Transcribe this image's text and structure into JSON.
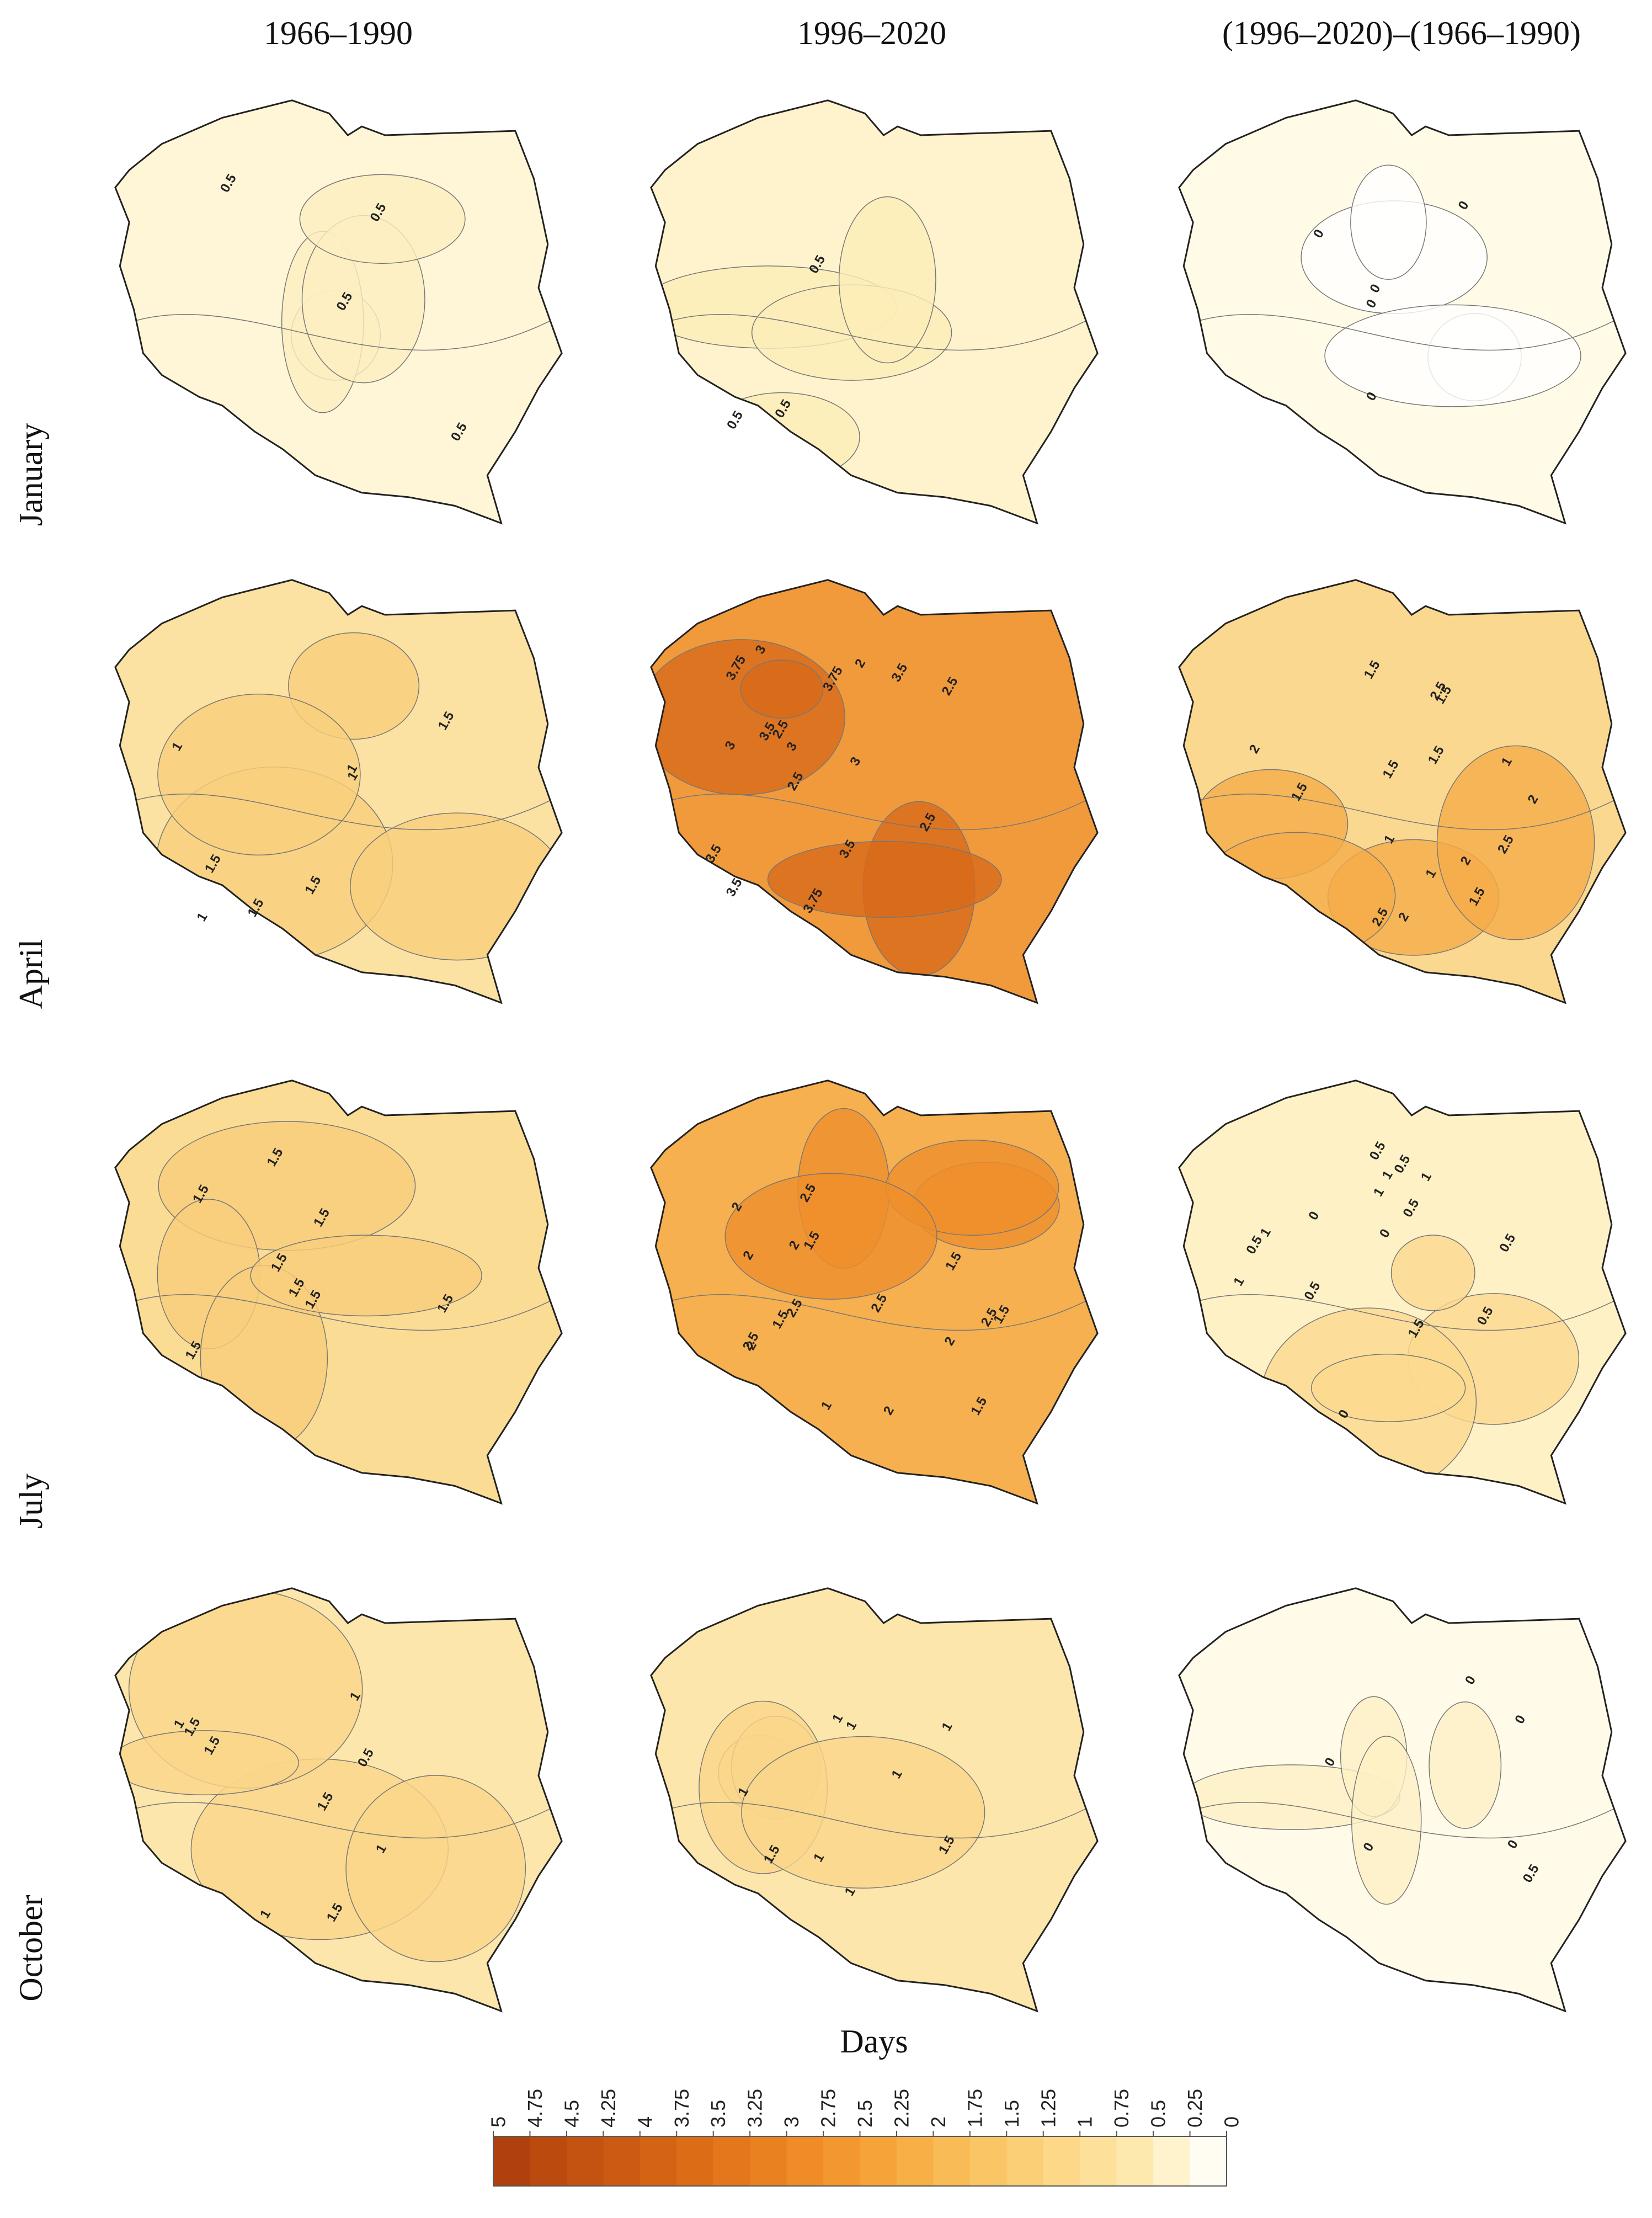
{
  "figure": {
    "columns": [
      "1966–1990",
      "1996–2020",
      "(1996–2020)–(1966–1990)"
    ],
    "rows": [
      "January",
      "April",
      "July",
      "October"
    ],
    "maps": [
      [
        {
          "fill": "#fef6d6",
          "inner_fill": "#fdefc0",
          "contour_labels": [
            0.5,
            0.5,
            0.5,
            0.5
          ]
        },
        {
          "fill": "#fef3cc",
          "inner_fill": "#fdedb8",
          "contour_labels": [
            0.5,
            0.5,
            0.5
          ]
        },
        {
          "fill": "#fffbe6",
          "inner_fill": "#ffffff",
          "contour_labels": [
            0,
            0,
            0,
            0,
            0
          ]
        }
      ],
      [
        {
          "fill": "#fbe1a2",
          "inner_fill": "#f9cf7c",
          "contour_labels": [
            1.5,
            1,
            1,
            1,
            1.5,
            1,
            1.5,
            1.5
          ]
        },
        {
          "fill": "#f19a3c",
          "inner_fill": "#d86a1a",
          "contour_labels": [
            2,
            2.5,
            3,
            2.5,
            2.5,
            3,
            3.5,
            3.75,
            3,
            3.5,
            3.5,
            3.75,
            2.5,
            3,
            3.5,
            3.75,
            3.5
          ]
        },
        {
          "fill": "#fbd890",
          "inner_fill": "#f5ac48",
          "contour_labels": [
            1,
            1,
            1.5,
            2,
            1,
            1.5,
            2,
            1.5,
            2,
            1.5,
            2.5,
            2,
            2.5,
            2.5,
            1.5,
            1.5
          ]
        }
      ],
      [
        {
          "fill": "#fbdc95",
          "inner_fill": "#f9cd7a",
          "contour_labels": [
            1.5,
            1.5,
            1.5,
            1.5,
            1.5,
            1.5,
            1.5,
            1.5
          ]
        },
        {
          "fill": "#f6b04f",
          "inner_fill": "#ef8f2c",
          "contour_labels": [
            1.5,
            1.5,
            1,
            1.5,
            2,
            2,
            2,
            2,
            2.5,
            2.5,
            2,
            2.5,
            2.5,
            1.5,
            1.5,
            2.5,
            2
          ]
        },
        {
          "fill": "#fef1c5",
          "inner_fill": "#fbd98f",
          "contour_labels": [
            0.5,
            0,
            0.5,
            0,
            0.5,
            0.5,
            1,
            0,
            0.5,
            0.5,
            1.5,
            1,
            1,
            0.5,
            1,
            1
          ]
        }
      ],
      [
        {
          "fill": "#fce6ab",
          "inner_fill": "#fad68a",
          "contour_labels": [
            0.5,
            1,
            1,
            1,
            1,
            1.5,
            1.5,
            1.5,
            1.5
          ]
        },
        {
          "fill": "#fce6ab",
          "inner_fill": "#fad68a",
          "contour_labels": [
            1,
            1,
            1,
            1,
            1,
            1,
            1,
            1.5,
            1.5
          ]
        },
        {
          "fill": "#fffbe8",
          "inner_fill": "#fef0c4",
          "contour_labels": [
            0,
            0,
            0.5,
            0,
            0,
            0
          ]
        }
      ]
    ],
    "legend": {
      "title": "Days",
      "ticks": [
        5,
        4.75,
        4.5,
        4.25,
        4,
        3.75,
        3.5,
        3.25,
        3,
        2.75,
        2.5,
        2.25,
        2,
        1.75,
        1.5,
        1.25,
        1,
        0.75,
        0.5,
        0.25,
        0
      ],
      "colors": [
        "#b0410e",
        "#bb4a0f",
        "#c45210",
        "#cd5a12",
        "#d56314",
        "#dd6c17",
        "#e4761b",
        "#ea8120",
        "#ef8c27",
        "#f3982f",
        "#f6a43a",
        "#f8b046",
        "#f9bb55",
        "#fac565",
        "#fbcf76",
        "#fcd888",
        "#fde19a",
        "#fde9ad",
        "#fef3cc",
        "#fffdf2"
      ]
    }
  }
}
